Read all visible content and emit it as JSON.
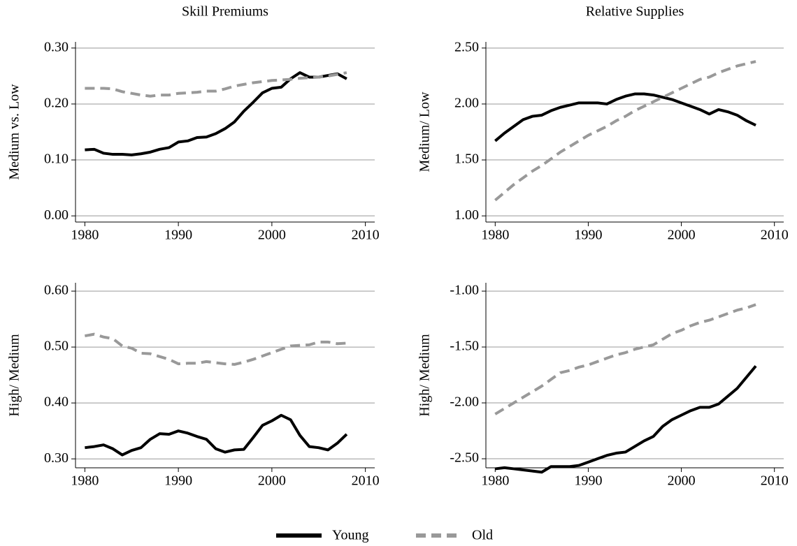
{
  "legend": [
    {
      "name": "Young",
      "color": "#000000",
      "line_style": "solid"
    },
    {
      "name": "Old",
      "color": "#999999",
      "line_style": "dashed"
    }
  ],
  "chart_data": [
    {
      "type": "line",
      "title": "Skill Premiums",
      "ylabel": "Medium vs. Low",
      "x": [
        1980,
        1981,
        1982,
        1983,
        1984,
        1985,
        1986,
        1987,
        1988,
        1989,
        1990,
        1991,
        1992,
        1993,
        1994,
        1995,
        1996,
        1997,
        1998,
        1999,
        2000,
        2001,
        2002,
        2003,
        2004,
        2005,
        2006,
        2007,
        2008
      ],
      "series": [
        {
          "values": [
            0.118,
            0.119,
            0.112,
            0.11,
            0.11,
            0.109,
            0.111,
            0.114,
            0.119,
            0.122,
            0.132,
            0.134,
            0.14,
            0.141,
            0.147,
            0.156,
            0.168,
            0.187,
            0.203,
            0.22,
            0.228,
            0.23,
            0.245,
            0.256,
            0.248,
            0.248,
            0.251,
            0.254,
            0.245
          ]
        },
        {
          "values": [
            0.228,
            0.228,
            0.228,
            0.227,
            0.222,
            0.219,
            0.216,
            0.214,
            0.216,
            0.216,
            0.219,
            0.22,
            0.221,
            0.223,
            0.223,
            0.227,
            0.232,
            0.235,
            0.238,
            0.24,
            0.242,
            0.243,
            0.244,
            0.246,
            0.247,
            0.248,
            0.25,
            0.253,
            0.256
          ]
        }
      ],
      "xlim": [
        1979,
        2011
      ],
      "ylim": [
        -0.011,
        0.311
      ],
      "xticks": [
        1980,
        1990,
        2000,
        2010
      ],
      "yticks": [
        {
          "value": 0,
          "label": "0.00"
        },
        {
          "value": 0.1,
          "label": "0.10"
        },
        {
          "value": 0.2,
          "label": "0.20"
        },
        {
          "value": 0.3,
          "label": "0.30"
        }
      ],
      "grid": true
    },
    {
      "type": "line",
      "title": "Relative Supplies",
      "ylabel": "Medium/ Low",
      "x": [
        1980,
        1981,
        1982,
        1983,
        1984,
        1985,
        1986,
        1987,
        1988,
        1989,
        1990,
        1991,
        1992,
        1993,
        1994,
        1995,
        1996,
        1997,
        1998,
        1999,
        2000,
        2001,
        2002,
        2003,
        2004,
        2005,
        2006,
        2007,
        2008
      ],
      "series": [
        {
          "values": [
            1.67,
            1.74,
            1.8,
            1.86,
            1.89,
            1.9,
            1.94,
            1.97,
            1.99,
            2.01,
            2.01,
            2.01,
            2.0,
            2.04,
            2.07,
            2.09,
            2.09,
            2.08,
            2.06,
            2.04,
            2.01,
            1.98,
            1.95,
            1.91,
            1.95,
            1.93,
            1.9,
            1.85,
            1.81
          ]
        },
        {
          "values": [
            1.14,
            1.21,
            1.28,
            1.34,
            1.4,
            1.45,
            1.51,
            1.57,
            1.62,
            1.67,
            1.72,
            1.76,
            1.8,
            1.85,
            1.89,
            1.94,
            1.98,
            2.02,
            2.06,
            2.1,
            2.14,
            2.18,
            2.22,
            2.24,
            2.28,
            2.31,
            2.34,
            2.36,
            2.38
          ]
        }
      ],
      "xlim": [
        1979,
        2011
      ],
      "ylim": [
        0.945,
        2.555
      ],
      "xticks": [
        1980,
        1990,
        2000,
        2010
      ],
      "yticks": [
        {
          "value": 1,
          "label": "1.00"
        },
        {
          "value": 1.5,
          "label": "1.50"
        },
        {
          "value": 2,
          "label": "2.00"
        },
        {
          "value": 2.5,
          "label": "2.50"
        }
      ],
      "grid": true
    },
    {
      "type": "line",
      "ylabel": "High/ Medium",
      "x": [
        1980,
        1981,
        1982,
        1983,
        1984,
        1985,
        1986,
        1987,
        1988,
        1989,
        1990,
        1991,
        1992,
        1993,
        1994,
        1995,
        1996,
        1997,
        1998,
        1999,
        2000,
        2001,
        2002,
        2003,
        2004,
        2005,
        2006,
        2007,
        2008
      ],
      "series": [
        {
          "values": [
            0.32,
            0.322,
            0.325,
            0.318,
            0.307,
            0.315,
            0.32,
            0.335,
            0.345,
            0.344,
            0.35,
            0.346,
            0.34,
            0.335,
            0.318,
            0.312,
            0.316,
            0.317,
            0.338,
            0.36,
            0.368,
            0.378,
            0.37,
            0.342,
            0.322,
            0.32,
            0.316,
            0.328,
            0.344
          ]
        },
        {
          "values": [
            0.52,
            0.523,
            0.518,
            0.515,
            0.502,
            0.498,
            0.489,
            0.488,
            0.483,
            0.478,
            0.47,
            0.471,
            0.471,
            0.474,
            0.472,
            0.47,
            0.469,
            0.473,
            0.478,
            0.484,
            0.49,
            0.496,
            0.502,
            0.503,
            0.504,
            0.509,
            0.509,
            0.506,
            0.507
          ]
        }
      ],
      "xlim": [
        1979,
        2011
      ],
      "ylim": [
        0.284,
        0.615
      ],
      "xticks": [
        1980,
        1990,
        2000,
        2010
      ],
      "yticks": [
        {
          "value": 0.3,
          "label": "0.30"
        },
        {
          "value": 0.4,
          "label": "0.40"
        },
        {
          "value": 0.5,
          "label": "0.50"
        },
        {
          "value": 0.6,
          "label": "0.60"
        }
      ],
      "grid": true
    },
    {
      "type": "line",
      "ylabel": "High/ Medium",
      "x": [
        1980,
        1981,
        1982,
        1983,
        1984,
        1985,
        1986,
        1987,
        1988,
        1989,
        1990,
        1991,
        1992,
        1993,
        1994,
        1995,
        1996,
        1997,
        1998,
        1999,
        2000,
        2001,
        2002,
        2003,
        2004,
        2005,
        2006,
        2007,
        2008
      ],
      "series": [
        {
          "values": [
            -2.59,
            -2.58,
            -2.59,
            -2.6,
            -2.61,
            -2.62,
            -2.57,
            -2.57,
            -2.57,
            -2.56,
            -2.53,
            -2.5,
            -2.47,
            -2.45,
            -2.44,
            -2.39,
            -2.34,
            -2.3,
            -2.21,
            -2.15,
            -2.11,
            -2.07,
            -2.04,
            -2.04,
            -2.01,
            -1.94,
            -1.87,
            -1.77,
            -1.67
          ]
        },
        {
          "values": [
            -2.1,
            -2.05,
            -2.0,
            -1.95,
            -1.9,
            -1.85,
            -1.79,
            -1.73,
            -1.71,
            -1.68,
            -1.66,
            -1.63,
            -1.6,
            -1.57,
            -1.55,
            -1.52,
            -1.5,
            -1.48,
            -1.43,
            -1.38,
            -1.35,
            -1.31,
            -1.28,
            -1.26,
            -1.23,
            -1.2,
            -1.17,
            -1.15,
            -1.12
          ]
        }
      ],
      "xlim": [
        1979,
        2011
      ],
      "ylim": [
        -2.581,
        -0.925
      ],
      "xticks": [
        1980,
        1990,
        2000,
        2010
      ],
      "yticks": [
        {
          "value": -2.5,
          "label": "-2.50"
        },
        {
          "value": -2,
          "label": "-2.00"
        },
        {
          "value": -1.5,
          "label": "-1.50"
        },
        {
          "value": -1,
          "label": "-1.00"
        }
      ],
      "grid": true
    }
  ]
}
